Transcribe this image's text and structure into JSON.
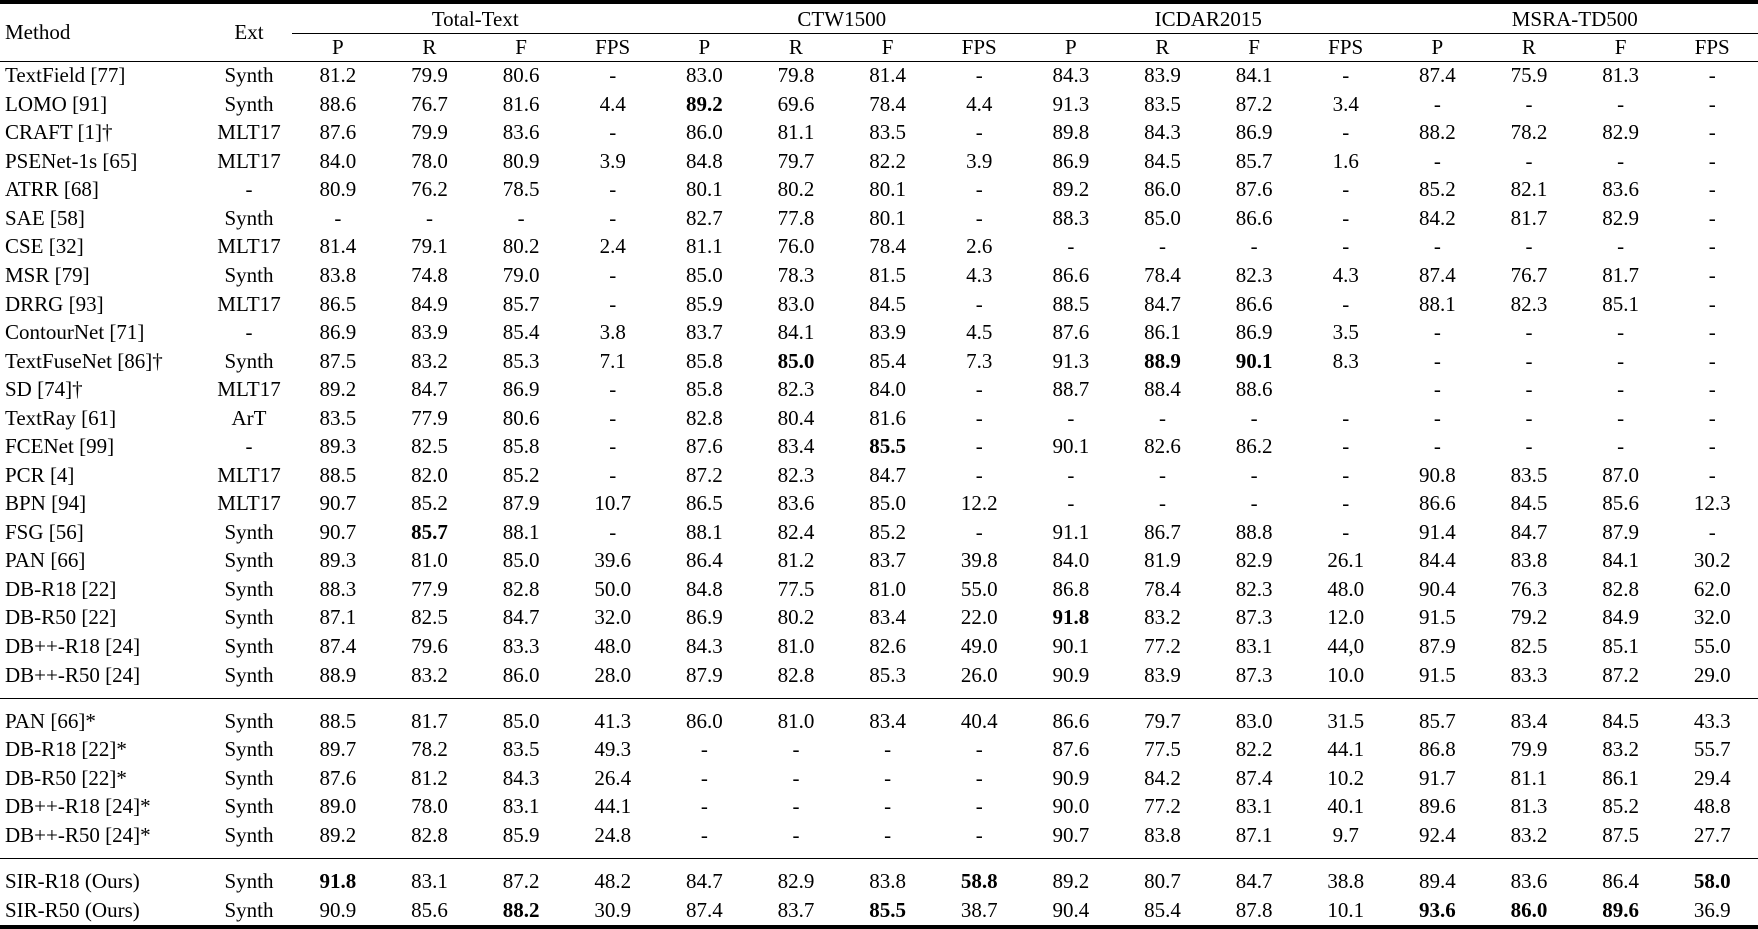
{
  "table": {
    "method_header": "Method",
    "ext_header": "Ext",
    "groups": [
      {
        "label": "Total-Text",
        "sub": [
          "P",
          "R",
          "F",
          "FPS"
        ]
      },
      {
        "label": "CTW1500",
        "sub": [
          "P",
          "R",
          "F",
          "FPS"
        ]
      },
      {
        "label": "ICDAR2015",
        "sub": [
          "P",
          "R",
          "F",
          "FPS"
        ]
      },
      {
        "label": "MSRA-TD500",
        "sub": [
          "P",
          "R",
          "F",
          "FPS"
        ]
      }
    ],
    "sections": [
      {
        "rows": [
          {
            "method": "TextField [77]",
            "ext": "Synth",
            "cells": [
              "81.2",
              "79.9",
              "80.6",
              "-",
              "83.0",
              "79.8",
              "81.4",
              "-",
              "84.3",
              "83.9",
              "84.1",
              "-",
              "87.4",
              "75.9",
              "81.3",
              "-"
            ],
            "bold": []
          },
          {
            "method": "LOMO [91]",
            "ext": "Synth",
            "cells": [
              "88.6",
              "76.7",
              "81.6",
              "4.4",
              "89.2",
              "69.6",
              "78.4",
              "4.4",
              "91.3",
              "83.5",
              "87.2",
              "3.4",
              "-",
              "-",
              "-",
              "-"
            ],
            "bold": [
              4
            ]
          },
          {
            "method": "CRAFT [1]†",
            "ext": "MLT17",
            "cells": [
              "87.6",
              "79.9",
              "83.6",
              "-",
              "86.0",
              "81.1",
              "83.5",
              "-",
              "89.8",
              "84.3",
              "86.9",
              "-",
              "88.2",
              "78.2",
              "82.9",
              "-"
            ],
            "bold": []
          },
          {
            "method": "PSENet-1s [65]",
            "ext": "MLT17",
            "cells": [
              "84.0",
              "78.0",
              "80.9",
              "3.9",
              "84.8",
              "79.7",
              "82.2",
              "3.9",
              "86.9",
              "84.5",
              "85.7",
              "1.6",
              "-",
              "-",
              "-",
              "-"
            ],
            "bold": []
          },
          {
            "method": "ATRR [68]",
            "ext": "-",
            "cells": [
              "80.9",
              "76.2",
              "78.5",
              "-",
              "80.1",
              "80.2",
              "80.1",
              "-",
              "89.2",
              "86.0",
              "87.6",
              "-",
              "85.2",
              "82.1",
              "83.6",
              "-"
            ],
            "bold": []
          },
          {
            "method": "SAE [58]",
            "ext": "Synth",
            "cells": [
              "-",
              "-",
              "-",
              "-",
              "82.7",
              "77.8",
              "80.1",
              "-",
              "88.3",
              "85.0",
              "86.6",
              "-",
              "84.2",
              "81.7",
              "82.9",
              "-"
            ],
            "bold": []
          },
          {
            "method": "CSE [32]",
            "ext": "MLT17",
            "cells": [
              "81.4",
              "79.1",
              "80.2",
              "2.4",
              "81.1",
              "76.0",
              "78.4",
              "2.6",
              "-",
              "-",
              "-",
              "-",
              "-",
              "-",
              "-",
              "-"
            ],
            "bold": []
          },
          {
            "method": "MSR [79]",
            "ext": "Synth",
            "cells": [
              "83.8",
              "74.8",
              "79.0",
              "-",
              "85.0",
              "78.3",
              "81.5",
              "4.3",
              "86.6",
              "78.4",
              "82.3",
              "4.3",
              "87.4",
              "76.7",
              "81.7",
              "-"
            ],
            "bold": []
          },
          {
            "method": "DRRG [93]",
            "ext": "MLT17",
            "cells": [
              "86.5",
              "84.9",
              "85.7",
              "-",
              "85.9",
              "83.0",
              "84.5",
              "-",
              "88.5",
              "84.7",
              "86.6",
              "-",
              "88.1",
              "82.3",
              "85.1",
              "-"
            ],
            "bold": []
          },
          {
            "method": "ContourNet [71]",
            "ext": "-",
            "cells": [
              "86.9",
              "83.9",
              "85.4",
              "3.8",
              "83.7",
              "84.1",
              "83.9",
              "4.5",
              "87.6",
              "86.1",
              "86.9",
              "3.5",
              "-",
              "-",
              "-",
              "-"
            ],
            "bold": []
          },
          {
            "method": "TextFuseNet [86]†",
            "ext": "Synth",
            "cells": [
              "87.5",
              "83.2",
              "85.3",
              "7.1",
              "85.8",
              "85.0",
              "85.4",
              "7.3",
              "91.3",
              "88.9",
              "90.1",
              "8.3",
              "-",
              "-",
              "-",
              "-"
            ],
            "bold": [
              5,
              9,
              10
            ]
          },
          {
            "method": "SD [74]†",
            "ext": "MLT17",
            "cells": [
              "89.2",
              "84.7",
              "86.9",
              "-",
              "85.8",
              "82.3",
              "84.0",
              "-",
              "88.7",
              "88.4",
              "88.6",
              "",
              "-",
              "-",
              "-",
              "-"
            ],
            "bold": []
          },
          {
            "method": "TextRay [61]",
            "ext": "ArT",
            "cells": [
              "83.5",
              "77.9",
              "80.6",
              "-",
              "82.8",
              "80.4",
              "81.6",
              "-",
              "-",
              "-",
              "-",
              "-",
              "-",
              "-",
              "-",
              "-"
            ],
            "bold": []
          },
          {
            "method": "FCENet [99]",
            "ext": "-",
            "cells": [
              "89.3",
              "82.5",
              "85.8",
              "-",
              "87.6",
              "83.4",
              "85.5",
              "-",
              "90.1",
              "82.6",
              "86.2",
              "-",
              "-",
              "-",
              "-",
              "-"
            ],
            "bold": [
              6
            ]
          },
          {
            "method": "PCR [4]",
            "ext": "MLT17",
            "cells": [
              "88.5",
              "82.0",
              "85.2",
              "-",
              "87.2",
              "82.3",
              "84.7",
              "-",
              "-",
              "-",
              "-",
              "-",
              "90.8",
              "83.5",
              "87.0",
              "-"
            ],
            "bold": []
          },
          {
            "method": "BPN [94]",
            "ext": "MLT17",
            "cells": [
              "90.7",
              "85.2",
              "87.9",
              "10.7",
              "86.5",
              "83.6",
              "85.0",
              "12.2",
              "-",
              "-",
              "-",
              "-",
              "86.6",
              "84.5",
              "85.6",
              "12.3"
            ],
            "bold": []
          },
          {
            "method": "FSG [56]",
            "ext": "Synth",
            "cells": [
              "90.7",
              "85.7",
              "88.1",
              "-",
              "88.1",
              "82.4",
              "85.2",
              "-",
              "91.1",
              "86.7",
              "88.8",
              "-",
              "91.4",
              "84.7",
              "87.9",
              "-"
            ],
            "bold": [
              1
            ]
          },
          {
            "method": "PAN [66]",
            "ext": "Synth",
            "cells": [
              "89.3",
              "81.0",
              "85.0",
              "39.6",
              "86.4",
              "81.2",
              "83.7",
              "39.8",
              "84.0",
              "81.9",
              "82.9",
              "26.1",
              "84.4",
              "83.8",
              "84.1",
              "30.2"
            ],
            "bold": []
          },
          {
            "method": "DB-R18 [22]",
            "ext": "Synth",
            "cells": [
              "88.3",
              "77.9",
              "82.8",
              "50.0",
              "84.8",
              "77.5",
              "81.0",
              "55.0",
              "86.8",
              "78.4",
              "82.3",
              "48.0",
              "90.4",
              "76.3",
              "82.8",
              "62.0"
            ],
            "bold": []
          },
          {
            "method": "DB-R50 [22]",
            "ext": "Synth",
            "cells": [
              "87.1",
              "82.5",
              "84.7",
              "32.0",
              "86.9",
              "80.2",
              "83.4",
              "22.0",
              "91.8",
              "83.2",
              "87.3",
              "12.0",
              "91.5",
              "79.2",
              "84.9",
              "32.0"
            ],
            "bold": [
              8
            ]
          },
          {
            "method": "DB++-R18 [24]",
            "ext": "Synth",
            "cells": [
              "87.4",
              "79.6",
              "83.3",
              "48.0",
              "84.3",
              "81.0",
              "82.6",
              "49.0",
              "90.1",
              "77.2",
              "83.1",
              "44,0",
              "87.9",
              "82.5",
              "85.1",
              "55.0"
            ],
            "bold": []
          },
          {
            "method": "DB++-R50 [24]",
            "ext": "Synth",
            "cells": [
              "88.9",
              "83.2",
              "86.0",
              "28.0",
              "87.9",
              "82.8",
              "85.3",
              "26.0",
              "90.9",
              "83.9",
              "87.3",
              "10.0",
              "91.5",
              "83.3",
              "87.2",
              "29.0"
            ],
            "bold": []
          }
        ]
      },
      {
        "rows": [
          {
            "method": "PAN [66]*",
            "ext": "Synth",
            "cells": [
              "88.5",
              "81.7",
              "85.0",
              "41.3",
              "86.0",
              "81.0",
              "83.4",
              "40.4",
              "86.6",
              "79.7",
              "83.0",
              "31.5",
              "85.7",
              "83.4",
              "84.5",
              "43.3"
            ],
            "bold": []
          },
          {
            "method": "DB-R18 [22]*",
            "ext": "Synth",
            "cells": [
              "89.7",
              "78.2",
              "83.5",
              "49.3",
              "-",
              "-",
              "-",
              "-",
              "87.6",
              "77.5",
              "82.2",
              "44.1",
              "86.8",
              "79.9",
              "83.2",
              "55.7"
            ],
            "bold": []
          },
          {
            "method": "DB-R50 [22]*",
            "ext": "Synth",
            "cells": [
              "87.6",
              "81.2",
              "84.3",
              "26.4",
              "-",
              "-",
              "-",
              "-",
              "90.9",
              "84.2",
              "87.4",
              "10.2",
              "91.7",
              "81.1",
              "86.1",
              "29.4"
            ],
            "bold": []
          },
          {
            "method": "DB++-R18 [24]*",
            "ext": "Synth",
            "cells": [
              "89.0",
              "78.0",
              "83.1",
              "44.1",
              "-",
              "-",
              "-",
              "-",
              "90.0",
              "77.2",
              "83.1",
              "40.1",
              "89.6",
              "81.3",
              "85.2",
              "48.8"
            ],
            "bold": []
          },
          {
            "method": "DB++-R50 [24]*",
            "ext": "Synth",
            "cells": [
              "89.2",
              "82.8",
              "85.9",
              "24.8",
              "-",
              "-",
              "-",
              "-",
              "90.7",
              "83.8",
              "87.1",
              "9.7",
              "92.4",
              "83.2",
              "87.5",
              "27.7"
            ],
            "bold": []
          }
        ]
      },
      {
        "rows": [
          {
            "method": "SIR-R18 (Ours)",
            "ext": "Synth",
            "cells": [
              "91.8",
              "83.1",
              "87.2",
              "48.2",
              "84.7",
              "82.9",
              "83.8",
              "58.8",
              "89.2",
              "80.7",
              "84.7",
              "38.8",
              "89.4",
              "83.6",
              "86.4",
              "58.0"
            ],
            "bold": [
              0,
              7,
              15
            ]
          },
          {
            "method": "SIR-R50 (Ours)",
            "ext": "Synth",
            "cells": [
              "90.9",
              "85.6",
              "88.2",
              "30.9",
              "87.4",
              "83.7",
              "85.5",
              "38.7",
              "90.4",
              "85.4",
              "87.8",
              "10.1",
              "93.6",
              "86.0",
              "89.6",
              "36.9"
            ],
            "bold": [
              2,
              6,
              12,
              13,
              14
            ]
          }
        ]
      }
    ]
  }
}
